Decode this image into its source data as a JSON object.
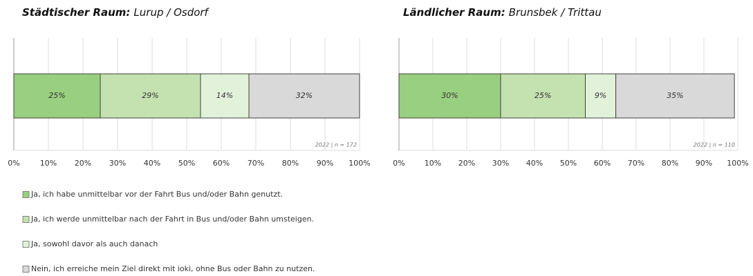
{
  "chart_data": [
    {
      "type": "bar",
      "stacked": true,
      "orientation": "horizontal",
      "title": "Städtischer Raum:",
      "subtitle": "Lurup / Osdorf",
      "series": [
        {
          "values": [
            25
          ],
          "value_labels": [
            "25%"
          ]
        },
        {
          "values": [
            29
          ],
          "value_labels": [
            "29%"
          ]
        },
        {
          "values": [
            14
          ],
          "value_labels": [
            "14%"
          ]
        },
        {
          "values": [
            32
          ],
          "value_labels": [
            "32%"
          ]
        }
      ],
      "xlim": [
        0,
        100
      ],
      "xticks": [
        {
          "value": 0,
          "label": "0%"
        },
        {
          "value": 10,
          "label": "10%"
        },
        {
          "value": 20,
          "label": "20%"
        },
        {
          "value": 30,
          "label": "30%"
        },
        {
          "value": 40,
          "label": "40%"
        },
        {
          "value": 50,
          "label": "50%"
        },
        {
          "value": 60,
          "label": "60%"
        },
        {
          "value": 70,
          "label": "70%"
        },
        {
          "value": 80,
          "label": "80%"
        },
        {
          "value": 90,
          "label": "90%"
        },
        {
          "value": 100,
          "label": "100%"
        }
      ],
      "grid": true,
      "annotation": "2022 | n = 172"
    },
    {
      "type": "bar",
      "stacked": true,
      "orientation": "horizontal",
      "title": "Ländlicher Raum:",
      "subtitle": "Brunsbek / Trittau",
      "series": [
        {
          "values": [
            30
          ],
          "value_labels": [
            "30%"
          ]
        },
        {
          "values": [
            25
          ],
          "value_labels": [
            "25%"
          ]
        },
        {
          "values": [
            9
          ],
          "value_labels": [
            "9%"
          ]
        },
        {
          "values": [
            35
          ],
          "value_labels": [
            "35%"
          ]
        }
      ],
      "xlim": [
        0,
        100
      ],
      "xticks": [
        {
          "value": 0,
          "label": "0%"
        },
        {
          "value": 10,
          "label": "10%"
        },
        {
          "value": 20,
          "label": "20%"
        },
        {
          "value": 30,
          "label": "30%"
        },
        {
          "value": 40,
          "label": "40%"
        },
        {
          "value": 50,
          "label": "50%"
        },
        {
          "value": 60,
          "label": "60%"
        },
        {
          "value": 70,
          "label": "70%"
        },
        {
          "value": 80,
          "label": "80%"
        },
        {
          "value": 90,
          "label": "90%"
        },
        {
          "value": 100,
          "label": "100%"
        }
      ],
      "grid": true,
      "annotation": "2022 | n = 110"
    }
  ],
  "legend": {
    "items": [
      {
        "name": "Ja, ich habe unmittelbar vor der Fahrt Bus und/oder Bahn genutzt.",
        "color": "#98cf80"
      },
      {
        "name": "Ja, ich werde unmittelbar nach der Fahrt in Bus und/oder Bahn umsteigen.",
        "color": "#c3e2b0"
      },
      {
        "name": "Ja, sowohl davor als auch danach",
        "color": "#e2f2da"
      },
      {
        "name": "Nein, ich erreiche mein Ziel direkt mit ioki, ohne Bus oder Bahn zu nutzen.",
        "color": "#d9d9d9"
      }
    ]
  }
}
